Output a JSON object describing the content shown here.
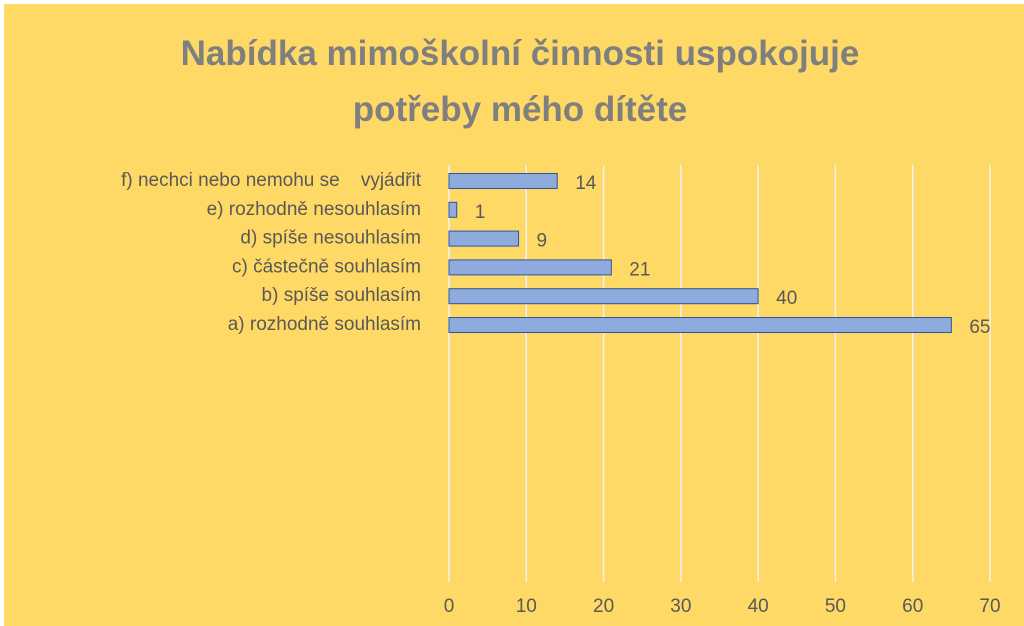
{
  "chart_data": {
    "type": "bar",
    "orientation": "horizontal",
    "title": "Nabídka mimoškolní činnosti uspokojuje potřeby mého dítěte",
    "categories": [
      "f) nechci nebo nemohu se    vyjádřit",
      "e) rozhodně nesouhlasím",
      "d) spíše nesouhlasím",
      "c) částečně souhlasím",
      "b) spíše souhlasím",
      "a) rozhodně souhlasím"
    ],
    "values": [
      14,
      1,
      9,
      21,
      40,
      65
    ],
    "color": "#8faadc",
    "xlim": [
      0,
      70
    ],
    "xticks": [
      0,
      10,
      20,
      30,
      40,
      50,
      60,
      70
    ],
    "grid": true
  }
}
